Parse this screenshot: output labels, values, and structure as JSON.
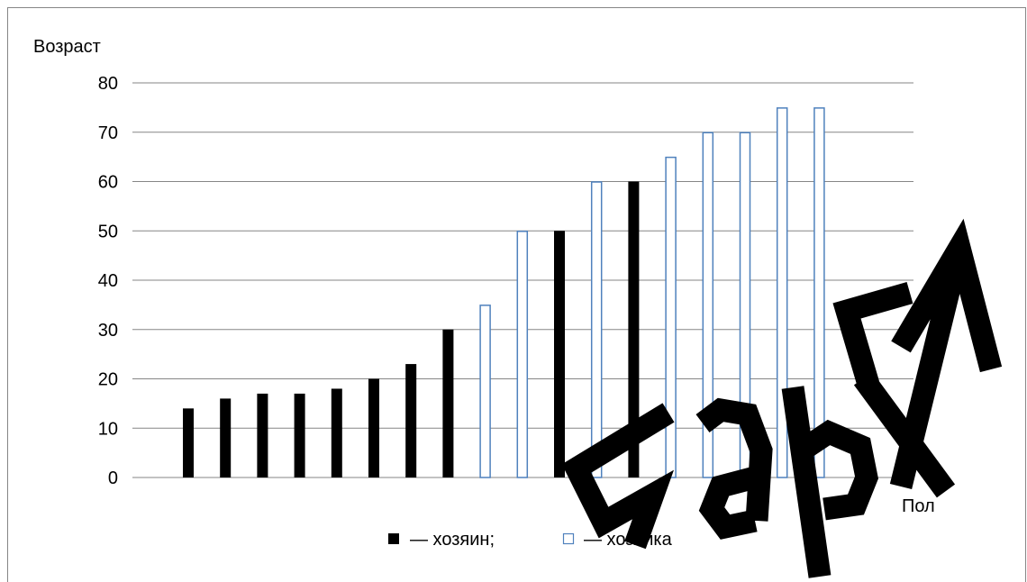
{
  "chart_data": {
    "type": "bar",
    "ylabel": "Возраст",
    "xlabel": "Пол",
    "ylim": [
      0,
      80
    ],
    "yticks": [
      0,
      10,
      20,
      30,
      40,
      50,
      60,
      70,
      80
    ],
    "grid": true,
    "legend_position": "bottom",
    "series": [
      {
        "name": "— хозяин;",
        "key": "host",
        "color": "#000000",
        "fill": "solid"
      },
      {
        "name": "— хозяйка",
        "key": "hostess",
        "color": "#4f81bd",
        "fill": "hollow"
      }
    ],
    "bars": [
      {
        "series": "host",
        "value": 14
      },
      {
        "series": "host",
        "value": 16
      },
      {
        "series": "host",
        "value": 17
      },
      {
        "series": "host",
        "value": 17
      },
      {
        "series": "host",
        "value": 18
      },
      {
        "series": "host",
        "value": 20
      },
      {
        "series": "host",
        "value": 23
      },
      {
        "series": "host",
        "value": 30
      },
      {
        "series": "hostess",
        "value": 35
      },
      {
        "series": "hostess",
        "value": 50
      },
      {
        "series": "host",
        "value": 50
      },
      {
        "series": "hostess",
        "value": 60
      },
      {
        "series": "host",
        "value": 60
      },
      {
        "series": "hostess",
        "value": 65
      },
      {
        "series": "hostess",
        "value": 70
      },
      {
        "series": "hostess",
        "value": 70
      },
      {
        "series": "hostess",
        "value": 75
      },
      {
        "series": "hostess",
        "value": 75
      }
    ]
  },
  "watermark": {
    "text": "БарГУ",
    "color": "#000000"
  }
}
